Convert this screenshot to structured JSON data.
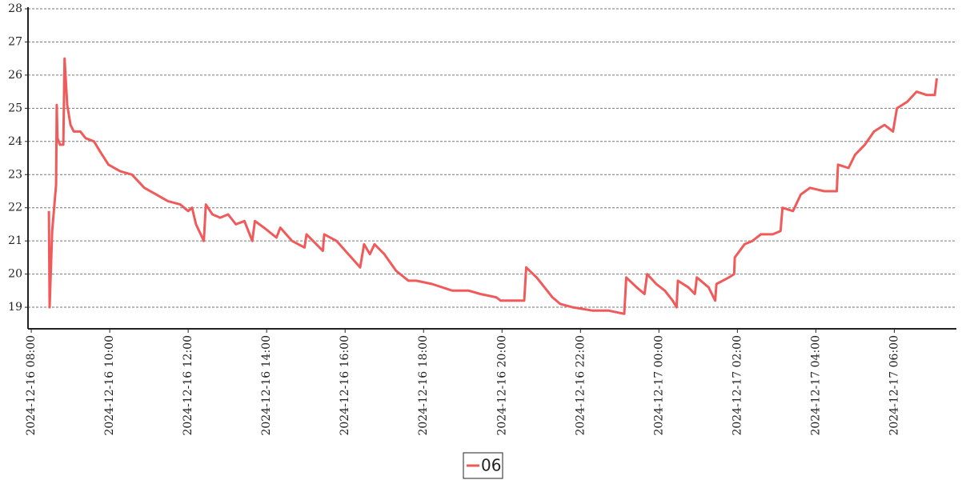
{
  "chart_data": {
    "type": "line",
    "x": [
      "2024-12-16 08:27",
      "2024-12-16 08:28",
      "2024-12-16 08:32",
      "2024-12-16 08:38",
      "2024-12-16 08:39",
      "2024-12-16 08:40",
      "2024-12-16 08:44",
      "2024-12-16 08:49",
      "2024-12-16 08:51",
      "2024-12-16 08:55",
      "2024-12-16 09:00",
      "2024-12-16 09:05",
      "2024-12-16 09:15",
      "2024-12-16 09:23",
      "2024-12-16 09:36",
      "2024-12-16 09:45",
      "2024-12-16 09:58",
      "2024-12-16 10:16",
      "2024-12-16 10:34",
      "2024-12-16 10:53",
      "2024-12-16 11:11",
      "2024-12-16 11:29",
      "2024-12-16 11:48",
      "2024-12-16 12:00",
      "2024-12-16 12:06",
      "2024-12-16 12:12",
      "2024-12-16 12:24",
      "2024-12-16 12:27",
      "2024-12-16 12:37",
      "2024-12-16 12:49",
      "2024-12-16 13:01",
      "2024-12-16 13:13",
      "2024-12-16 13:26",
      "2024-12-16 13:38",
      "2024-12-16 13:42",
      "2024-12-16 13:56",
      "2024-12-16 14:15",
      "2024-12-16 14:21",
      "2024-12-16 14:39",
      "2024-12-16 14:58",
      "2024-12-16 15:01",
      "2024-12-16 15:16",
      "2024-12-16 15:26",
      "2024-12-16 15:28",
      "2024-12-16 15:47",
      "2024-12-16 16:05",
      "2024-12-16 16:23",
      "2024-12-16 16:29",
      "2024-12-16 16:38",
      "2024-12-16 16:45",
      "2024-12-16 17:00",
      "2024-12-16 17:18",
      "2024-12-16 17:37",
      "2024-12-16 17:49",
      "2024-12-16 18:13",
      "2024-12-16 18:44",
      "2024-12-16 19:09",
      "2024-12-16 19:27",
      "2024-12-16 19:51",
      "2024-12-16 19:58",
      "2024-12-16 20:16",
      "2024-12-16 20:34",
      "2024-12-16 20:37",
      "2024-12-16 20:53",
      "2024-12-16 21:05",
      "2024-12-16 21:17",
      "2024-12-16 21:29",
      "2024-12-16 21:48",
      "2024-12-16 22:18",
      "2024-12-16 22:43",
      "2024-12-16 23:07",
      "2024-12-16 23:10",
      "2024-12-16 23:26",
      "2024-12-16 23:38",
      "2024-12-16 23:42",
      "2024-12-16 23:56",
      "2024-12-17 00:09",
      "2024-12-17 00:21",
      "2024-12-17 00:27",
      "2024-12-17 00:29",
      "2024-12-17 00:45",
      "2024-12-17 00:55",
      "2024-12-17 00:58",
      "2024-12-17 01:16",
      "2024-12-17 01:26",
      "2024-12-17 01:28",
      "2024-12-17 01:47",
      "2024-12-17 01:55",
      "2024-12-17 01:56",
      "2024-12-17 02:11",
      "2024-12-17 02:23",
      "2024-12-17 02:36",
      "2024-12-17 02:54",
      "2024-12-17 03:06",
      "2024-12-17 03:09",
      "2024-12-17 03:25",
      "2024-12-17 03:37",
      "2024-12-17 03:51",
      "2024-12-17 04:13",
      "2024-12-17 04:32",
      "2024-12-17 04:34",
      "2024-12-17 04:50",
      "2024-12-17 05:00",
      "2024-12-17 05:15",
      "2024-12-17 05:29",
      "2024-12-17 05:45",
      "2024-12-17 05:58",
      "2024-12-17 06:04",
      "2024-12-17 06:20",
      "2024-12-17 06:34",
      "2024-12-17 06:50",
      "2024-12-17 07:02",
      "2024-12-17 07:05"
    ],
    "series": [
      {
        "name": "06",
        "color": "#f05a5a",
        "values": [
          21.9,
          19.0,
          21.3,
          22.7,
          25.1,
          24.1,
          23.9,
          23.9,
          26.5,
          25.1,
          24.5,
          24.3,
          24.3,
          24.1,
          24.0,
          23.7,
          23.3,
          23.1,
          23.0,
          22.6,
          22.4,
          22.2,
          22.1,
          21.9,
          22.0,
          21.5,
          21.0,
          22.1,
          21.8,
          21.7,
          21.8,
          21.5,
          21.6,
          21.0,
          21.6,
          21.4,
          21.1,
          21.4,
          21.0,
          20.8,
          21.2,
          20.9,
          20.7,
          21.2,
          21.0,
          20.6,
          20.2,
          20.9,
          20.6,
          20.9,
          20.6,
          20.1,
          19.8,
          19.8,
          19.7,
          19.5,
          19.5,
          19.4,
          19.3,
          19.2,
          19.2,
          19.2,
          20.2,
          19.9,
          19.6,
          19.3,
          19.1,
          19.0,
          18.9,
          18.9,
          18.8,
          19.9,
          19.6,
          19.4,
          20.0,
          19.7,
          19.5,
          19.2,
          19.0,
          19.8,
          19.6,
          19.4,
          19.9,
          19.6,
          19.2,
          19.7,
          19.9,
          20.0,
          20.5,
          20.9,
          21.0,
          21.2,
          21.2,
          21.3,
          22.0,
          21.9,
          22.4,
          22.6,
          22.5,
          22.5,
          23.3,
          23.2,
          23.6,
          23.9,
          24.3,
          24.5,
          24.3,
          25.0,
          25.2,
          25.5,
          25.4,
          25.4,
          25.9
        ]
      }
    ],
    "xlim": [
      "2024-12-16 07:55",
      "2024-12-17 07:35"
    ],
    "xticks": [
      "2024-12-16 08:00",
      "2024-12-16 10:00",
      "2024-12-16 12:00",
      "2024-12-16 14:00",
      "2024-12-16 16:00",
      "2024-12-16 18:00",
      "2024-12-16 20:00",
      "2024-12-16 22:00",
      "2024-12-17 00:00",
      "2024-12-17 02:00",
      "2024-12-17 04:00",
      "2024-12-17 06:00"
    ],
    "ylim": [
      18.35,
      28
    ],
    "yticks": [
      19,
      20,
      21,
      22,
      23,
      24,
      25,
      26,
      27,
      28
    ],
    "grid": true,
    "legend": "bottom"
  }
}
